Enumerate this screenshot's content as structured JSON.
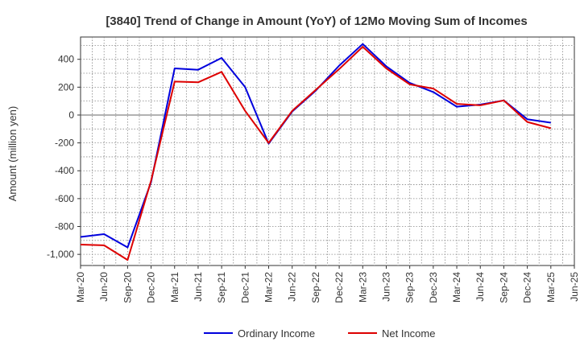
{
  "chart_data": {
    "type": "line",
    "title": "[3840]  Trend of Change in Amount (YoY) of 12Mo Moving Sum of Incomes",
    "xlabel": "",
    "ylabel": "Amount (million yen)",
    "x_ticks": [
      "Mar-20",
      "Jun-20",
      "Sep-20",
      "Dec-20",
      "Mar-21",
      "Jun-21",
      "Sep-21",
      "Dec-21",
      "Mar-22",
      "Jun-22",
      "Sep-22",
      "Dec-22",
      "Mar-23",
      "Jun-23",
      "Sep-23",
      "Dec-23",
      "Mar-24",
      "Jun-24",
      "Sep-24",
      "Dec-24",
      "Mar-25",
      "Jun-25"
    ],
    "y_ticks": [
      400,
      200,
      0,
      -200,
      -400,
      -600,
      -800,
      -1000
    ],
    "y_tick_labels": [
      "400",
      "200",
      "0",
      "-200",
      "-400",
      "-600",
      "-800",
      "-1,000"
    ],
    "ylim": [
      -1080,
      560
    ],
    "grid": true,
    "legend_position": "bottom-center",
    "series": [
      {
        "name": "Ordinary Income",
        "color": "#0000dd",
        "x": [
          "Mar-20",
          "Jun-20",
          "Sep-20",
          "Dec-20",
          "Mar-21",
          "Jun-21",
          "Sep-21",
          "Dec-21",
          "Mar-22",
          "Jun-22",
          "Sep-22",
          "Dec-22",
          "Mar-23",
          "Jun-23",
          "Sep-23",
          "Dec-23",
          "Mar-24",
          "Jun-24",
          "Sep-24",
          "Dec-24",
          "Mar-25"
        ],
        "values": [
          -875,
          -855,
          -950,
          -480,
          335,
          325,
          410,
          200,
          -205,
          25,
          175,
          355,
          510,
          350,
          230,
          165,
          60,
          75,
          105,
          -30,
          -55
        ]
      },
      {
        "name": "Net Income",
        "color": "#dd0000",
        "x": [
          "Mar-20",
          "Jun-20",
          "Sep-20",
          "Dec-20",
          "Mar-21",
          "Jun-21",
          "Sep-21",
          "Dec-21",
          "Mar-22",
          "Jun-22",
          "Sep-22",
          "Dec-22",
          "Mar-23",
          "Jun-23",
          "Sep-23",
          "Dec-23",
          "Mar-24",
          "Jun-24",
          "Sep-24",
          "Dec-24",
          "Mar-25"
        ],
        "values": [
          -930,
          -935,
          -1040,
          -470,
          240,
          235,
          310,
          30,
          -200,
          30,
          180,
          330,
          490,
          335,
          220,
          190,
          80,
          70,
          105,
          -50,
          -95
        ]
      }
    ]
  }
}
